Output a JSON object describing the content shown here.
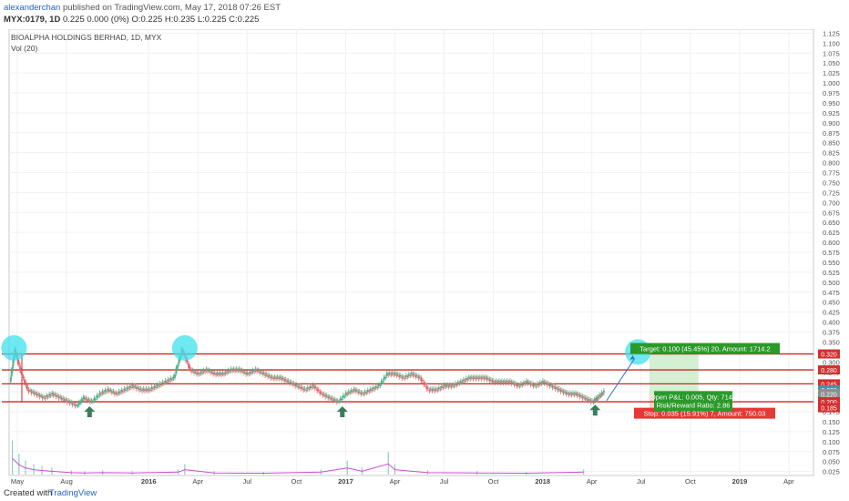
{
  "header": {
    "author": "alexanderchan",
    "published": "published on TradingView.com, May 17, 2018 07:26 EST",
    "symbol": "MYX:0179, 1D",
    "ohlc": "0.225 0.000 (0%) O:0.225 H:0.235 L:0.225 C:0.225"
  },
  "footer": {
    "created": "Created with",
    "brand": "TradingView"
  },
  "chart_data": {
    "type": "candlestick",
    "title": "BIOALPHA HOLDINGS BERHAD, 1D, MYX",
    "indicator_label": "Vol (20)",
    "y_ticks": [
      1.125,
      1.1,
      1.075,
      1.05,
      1.025,
      1.0,
      0.975,
      0.95,
      0.925,
      0.9,
      0.875,
      0.85,
      0.825,
      0.8,
      0.775,
      0.75,
      0.725,
      0.7,
      0.675,
      0.65,
      0.625,
      0.6,
      0.575,
      0.55,
      0.525,
      0.5,
      0.475,
      0.45,
      0.425,
      0.4,
      0.375,
      0.35,
      0.325,
      0.3,
      0.275,
      0.25,
      0.225,
      0.2,
      0.175,
      0.15,
      0.125,
      0.1,
      0.075,
      0.05,
      0.025
    ],
    "y_tick_labels": [
      "1.125",
      "1.100",
      "1.075",
      "1.050",
      "1.025",
      "1.000",
      "0.975",
      "0.950",
      "0.925",
      "0.900",
      "0.875",
      "0.850",
      "0.825",
      "0.800",
      "0.775",
      "0.750",
      "0.725",
      "0.700",
      "0.675",
      "0.650",
      "0.625",
      "0.600",
      "0.575",
      "0.550",
      "0.525",
      "0.500",
      "0.475",
      "0.450",
      "0.425",
      "0.400",
      "0.375",
      "0.350",
      "0.325",
      "0.300",
      "0.275",
      "0.250",
      "0.225",
      "0.200",
      "0.175",
      "0.150",
      "0.125",
      "0.100",
      "0.075",
      "0.050",
      "0.025"
    ],
    "x_tick_labels": [
      {
        "label": "May",
        "bold": false
      },
      {
        "label": "Aug",
        "bold": false
      },
      {
        "label": "2016",
        "bold": true
      },
      {
        "label": "Apr",
        "bold": false
      },
      {
        "label": "Jul",
        "bold": false
      },
      {
        "label": "Oct",
        "bold": false
      },
      {
        "label": "2017",
        "bold": true
      },
      {
        "label": "Apr",
        "bold": false
      },
      {
        "label": "Jul",
        "bold": false
      },
      {
        "label": "Oct",
        "bold": false
      },
      {
        "label": "2018",
        "bold": true
      },
      {
        "label": "Apr",
        "bold": false
      },
      {
        "label": "Jul",
        "bold": false
      },
      {
        "label": "Oct",
        "bold": false
      },
      {
        "label": "2019",
        "bold": true
      },
      {
        "label": "Apr",
        "bold": false
      }
    ],
    "x_tick_months": [
      0,
      3,
      8,
      11,
      14,
      17,
      20,
      23,
      26,
      29,
      32,
      35,
      38,
      41,
      44,
      47
    ],
    "x_range_months": [
      -0.5,
      48.5
    ],
    "horizontal_levels": [
      0.32,
      0.28,
      0.245,
      0.2
    ],
    "price_labels": [
      {
        "text": "0.320",
        "color": "#d32f2f",
        "value": 0.32
      },
      {
        "text": "0.280",
        "color": "#d32f2f",
        "value": 0.28
      },
      {
        "text": "0.245",
        "color": "#d32f2f",
        "value": 0.245
      },
      {
        "text": "0.230",
        "color": "#4a90a4",
        "value": 0.23
      },
      {
        "text": "0.220",
        "color": "#8e8e8e",
        "value": 0.22
      },
      {
        "text": "0.200",
        "color": "#d32f2f",
        "value": 0.2
      },
      {
        "text": "0.185",
        "color": "#d32f2f",
        "value": 0.185
      }
    ],
    "position": {
      "entry": 0.22,
      "target": 0.32,
      "stop": 0.185,
      "start_month": 38.5,
      "end_month": 41.5,
      "target_label": "Target: 0.100 (45.45%) 20, Amount: 1714.2",
      "stop_label": "Stop: 0.035 (15.91%) 7, Amount: 750.03",
      "pnl_label": "Open P&L: 0.005, Qty: 7142",
      "rr_label": "Risk/Reward Ratio: 2.86"
    },
    "highlight_circles": [
      {
        "month": -0.2,
        "value": 0.335
      },
      {
        "month": 10.2,
        "value": 0.335
      },
      {
        "month": 37.8,
        "value": 0.325
      }
    ],
    "up_arrows": [
      {
        "month": 4.4,
        "value": 0.175
      },
      {
        "month": 19.8,
        "value": 0.175
      },
      {
        "month": 35.2,
        "value": 0.179
      }
    ],
    "projection_line": {
      "from_month": 35.9,
      "from_value": 0.203,
      "to_month": 37.6,
      "to_value": 0.308
    },
    "close_series_monthly": [
      [
        -0.4,
        0.25
      ],
      [
        -0.1,
        0.33
      ],
      [
        0.3,
        0.27
      ],
      [
        0.7,
        0.23
      ],
      [
        1.2,
        0.22
      ],
      [
        1.7,
        0.21
      ],
      [
        2.2,
        0.22
      ],
      [
        2.7,
        0.21
      ],
      [
        3.2,
        0.2
      ],
      [
        3.7,
        0.19
      ],
      [
        4.1,
        0.21
      ],
      [
        4.6,
        0.2
      ],
      [
        5.1,
        0.22
      ],
      [
        5.6,
        0.23
      ],
      [
        6.1,
        0.22
      ],
      [
        6.6,
        0.23
      ],
      [
        7.1,
        0.24
      ],
      [
        7.6,
        0.23
      ],
      [
        8.1,
        0.23
      ],
      [
        8.6,
        0.24
      ],
      [
        9.1,
        0.25
      ],
      [
        9.6,
        0.26
      ],
      [
        10.1,
        0.33
      ],
      [
        10.6,
        0.28
      ],
      [
        11.1,
        0.27
      ],
      [
        11.6,
        0.28
      ],
      [
        12.1,
        0.27
      ],
      [
        12.6,
        0.27
      ],
      [
        13.1,
        0.28
      ],
      [
        13.6,
        0.28
      ],
      [
        14.1,
        0.27
      ],
      [
        14.6,
        0.28
      ],
      [
        15.1,
        0.27
      ],
      [
        15.6,
        0.26
      ],
      [
        16.1,
        0.26
      ],
      [
        16.6,
        0.25
      ],
      [
        17.1,
        0.24
      ],
      [
        17.6,
        0.23
      ],
      [
        18.1,
        0.24
      ],
      [
        18.6,
        0.22
      ],
      [
        19.1,
        0.21
      ],
      [
        19.6,
        0.2
      ],
      [
        20.1,
        0.22
      ],
      [
        20.6,
        0.23
      ],
      [
        21.1,
        0.22
      ],
      [
        21.6,
        0.23
      ],
      [
        22.1,
        0.24
      ],
      [
        22.6,
        0.27
      ],
      [
        23.1,
        0.27
      ],
      [
        23.6,
        0.26
      ],
      [
        24.1,
        0.27
      ],
      [
        24.6,
        0.26
      ],
      [
        25.1,
        0.23
      ],
      [
        25.6,
        0.23
      ],
      [
        26.1,
        0.24
      ],
      [
        26.6,
        0.24
      ],
      [
        27.1,
        0.25
      ],
      [
        27.6,
        0.26
      ],
      [
        28.1,
        0.26
      ],
      [
        28.6,
        0.26
      ],
      [
        29.1,
        0.25
      ],
      [
        29.6,
        0.25
      ],
      [
        30.1,
        0.25
      ],
      [
        30.6,
        0.24
      ],
      [
        31.1,
        0.25
      ],
      [
        31.6,
        0.24
      ],
      [
        32.1,
        0.25
      ],
      [
        32.6,
        0.24
      ],
      [
        33.1,
        0.23
      ],
      [
        33.6,
        0.22
      ],
      [
        34.1,
        0.22
      ],
      [
        34.6,
        0.21
      ],
      [
        35.1,
        0.2
      ],
      [
        35.4,
        0.21
      ],
      [
        35.8,
        0.225
      ]
    ],
    "volume_spikes": [
      [
        -0.3,
        0.098
      ],
      [
        0.1,
        0.06
      ],
      [
        0.5,
        0.04
      ],
      [
        1.0,
        0.03
      ],
      [
        1.5,
        0.025
      ],
      [
        2.1,
        0.02
      ],
      [
        3.3,
        0.012
      ],
      [
        4.1,
        0.01
      ],
      [
        5.2,
        0.012
      ],
      [
        7.0,
        0.01
      ],
      [
        9.8,
        0.015
      ],
      [
        10.2,
        0.03
      ],
      [
        12.0,
        0.01
      ],
      [
        15.0,
        0.008
      ],
      [
        18.5,
        0.015
      ],
      [
        20.1,
        0.04
      ],
      [
        21.0,
        0.02
      ],
      [
        22.6,
        0.065
      ],
      [
        23.0,
        0.03
      ],
      [
        25.0,
        0.012
      ],
      [
        28.0,
        0.01
      ],
      [
        31.0,
        0.008
      ],
      [
        34.5,
        0.015
      ]
    ]
  }
}
